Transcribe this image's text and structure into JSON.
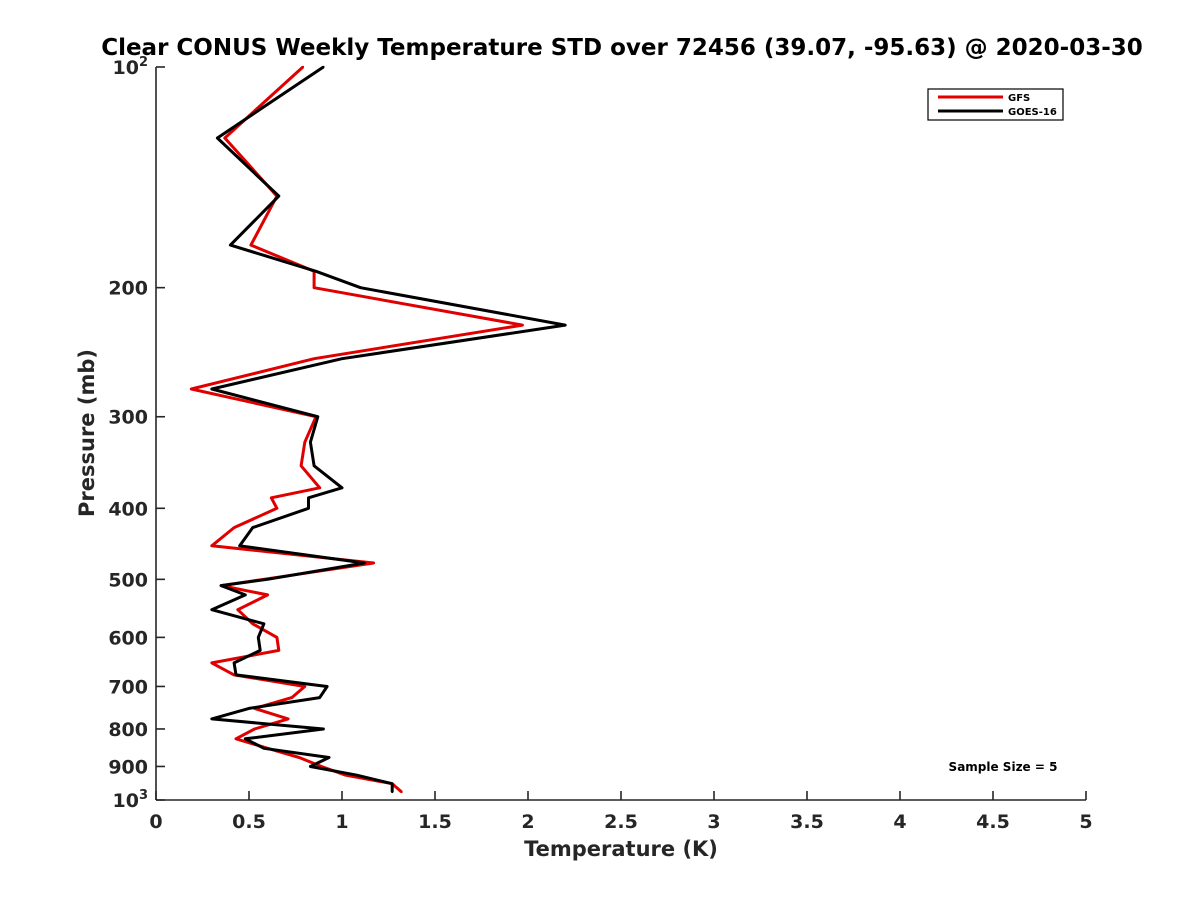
{
  "chart_data": {
    "type": "line",
    "title": "Clear CONUS Weekly Temperature STD over 72456 (39.07, -95.63) @ 2020-03-30",
    "xlabel": "Temperature (K)",
    "ylabel": "Pressure (mb)",
    "xlim": [
      0,
      5
    ],
    "ylim": [
      100,
      1000
    ],
    "yscale": "log",
    "y_reversed": true,
    "xticks": [
      0,
      0.5,
      1,
      1.5,
      2,
      2.5,
      3,
      3.5,
      4,
      4.5,
      5
    ],
    "xtick_labels": [
      "0",
      "0.5",
      "1",
      "1.5",
      "2",
      "2.5",
      "3",
      "3.5",
      "4",
      "4.5",
      "5"
    ],
    "yticks": [
      {
        "value": 100,
        "base": "10",
        "exp": "2"
      },
      {
        "value": 200,
        "label": "200"
      },
      {
        "value": 300,
        "label": "300"
      },
      {
        "value": 400,
        "label": "400"
      },
      {
        "value": 500,
        "label": "500"
      },
      {
        "value": 600,
        "label": "600"
      },
      {
        "value": 700,
        "label": "700"
      },
      {
        "value": 800,
        "label": "800"
      },
      {
        "value": 900,
        "label": "900"
      },
      {
        "value": 1000,
        "base": "10",
        "exp": "3"
      }
    ],
    "legend_position": "top-right",
    "annotation": "Sample Size = 5",
    "series": [
      {
        "name": "GFS",
        "color": "#e00000",
        "points": [
          [
            0.79,
            100
          ],
          [
            0.37,
            125
          ],
          [
            0.65,
            150
          ],
          [
            0.51,
            175
          ],
          [
            0.85,
            190
          ],
          [
            0.85,
            200
          ],
          [
            1.97,
            225
          ],
          [
            0.85,
            250
          ],
          [
            0.19,
            275
          ],
          [
            0.86,
            300
          ],
          [
            0.8,
            325
          ],
          [
            0.78,
            350
          ],
          [
            0.88,
            375
          ],
          [
            0.62,
            387
          ],
          [
            0.65,
            400
          ],
          [
            0.42,
            425
          ],
          [
            0.3,
            450
          ],
          [
            1.17,
            475
          ],
          [
            0.58,
            500
          ],
          [
            0.35,
            510
          ],
          [
            0.6,
            525
          ],
          [
            0.44,
            550
          ],
          [
            0.52,
            575
          ],
          [
            0.65,
            600
          ],
          [
            0.66,
            625
          ],
          [
            0.3,
            650
          ],
          [
            0.42,
            675
          ],
          [
            0.8,
            700
          ],
          [
            0.73,
            725
          ],
          [
            0.53,
            750
          ],
          [
            0.71,
            775
          ],
          [
            0.53,
            800
          ],
          [
            0.43,
            825
          ],
          [
            0.6,
            850
          ],
          [
            0.77,
            875
          ],
          [
            0.89,
            900
          ],
          [
            1.02,
            925
          ],
          [
            1.27,
            950
          ],
          [
            1.32,
            975
          ]
        ]
      },
      {
        "name": "GOES-16",
        "color": "#000000",
        "points": [
          [
            0.9,
            100
          ],
          [
            0.33,
            125
          ],
          [
            0.66,
            150
          ],
          [
            0.4,
            175
          ],
          [
            0.86,
            190
          ],
          [
            1.1,
            200
          ],
          [
            2.2,
            225
          ],
          [
            1.0,
            250
          ],
          [
            0.3,
            275
          ],
          [
            0.87,
            300
          ],
          [
            0.83,
            325
          ],
          [
            0.85,
            350
          ],
          [
            1.0,
            375
          ],
          [
            0.82,
            387
          ],
          [
            0.82,
            400
          ],
          [
            0.52,
            425
          ],
          [
            0.45,
            450
          ],
          [
            1.12,
            475
          ],
          [
            0.6,
            500
          ],
          [
            0.35,
            510
          ],
          [
            0.48,
            525
          ],
          [
            0.3,
            550
          ],
          [
            0.58,
            575
          ],
          [
            0.55,
            600
          ],
          [
            0.56,
            625
          ],
          [
            0.42,
            650
          ],
          [
            0.43,
            675
          ],
          [
            0.92,
            700
          ],
          [
            0.88,
            725
          ],
          [
            0.5,
            750
          ],
          [
            0.3,
            775
          ],
          [
            0.9,
            800
          ],
          [
            0.48,
            825
          ],
          [
            0.58,
            850
          ],
          [
            0.93,
            875
          ],
          [
            0.83,
            900
          ],
          [
            1.08,
            925
          ],
          [
            1.27,
            950
          ],
          [
            1.27,
            975
          ]
        ]
      }
    ]
  }
}
